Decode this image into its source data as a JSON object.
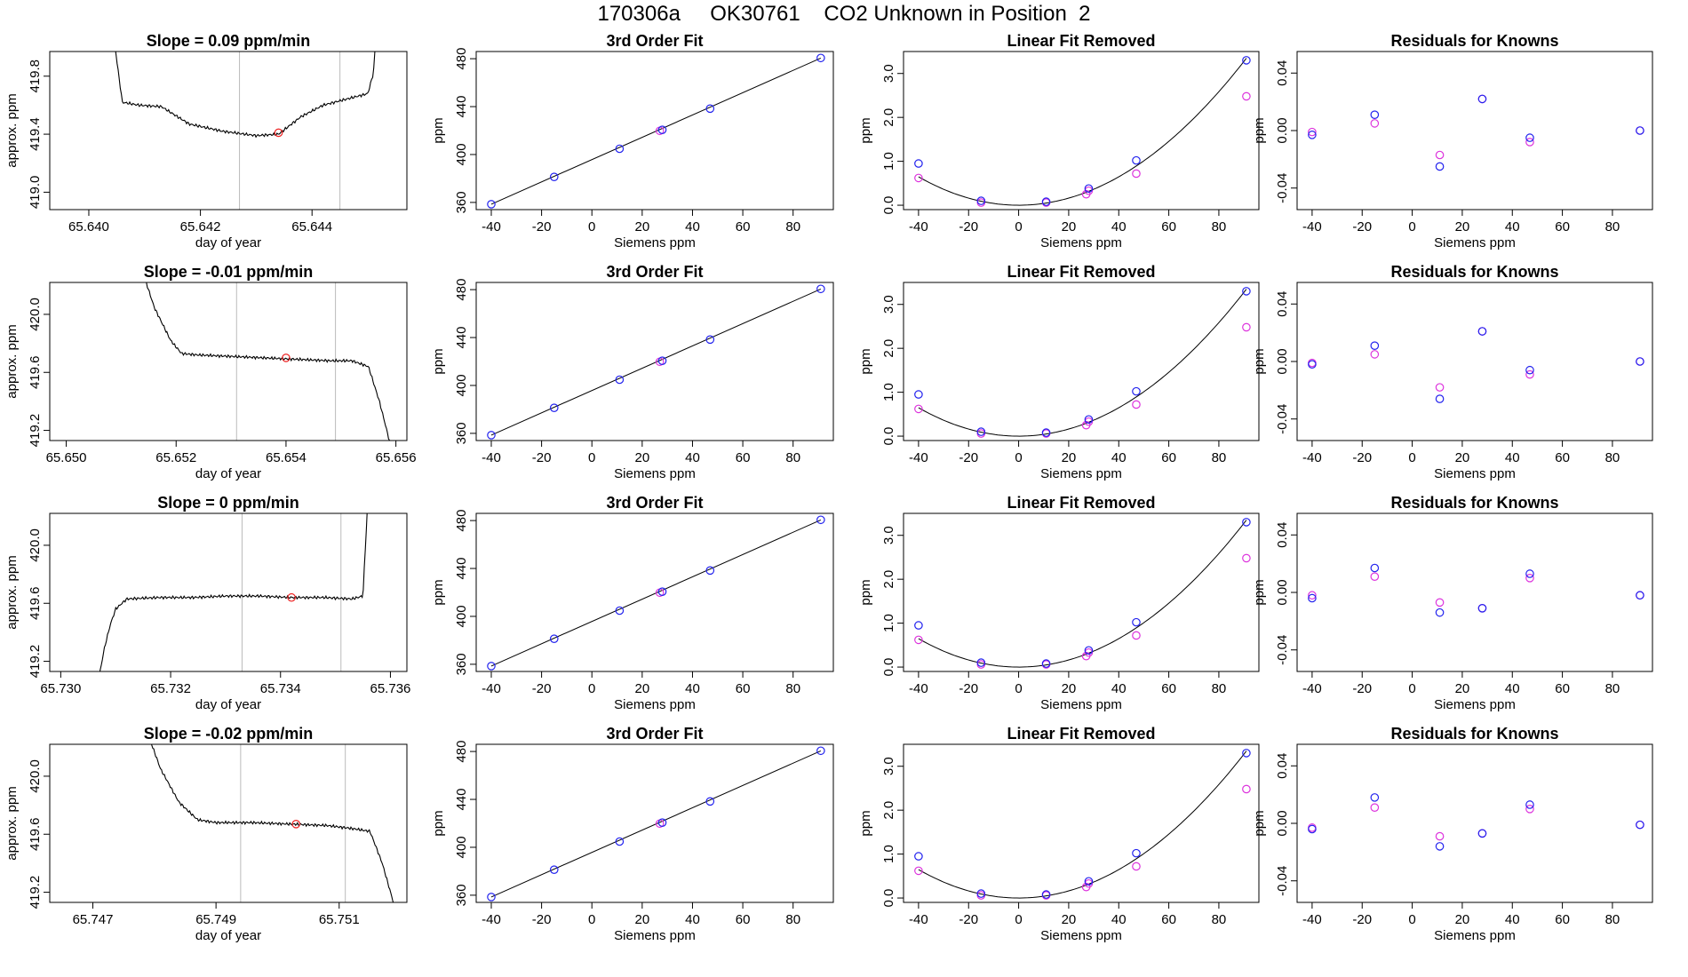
{
  "page_title": "170306a     OK30761    CO2 Unknown in Position  2",
  "colors": {
    "curve": "#000000",
    "blue": "#2222ee",
    "magenta": "#dd33dd",
    "red": "#ee2222",
    "vline": "#bbbbbb"
  },
  "chart_data": [
    {
      "type": "line",
      "panel": "time-series",
      "title": "Slope =  0.09  ppm/min",
      "xlabel": "day of year",
      "ylabel": "approx. ppm",
      "xlim": [
        65.6393,
        65.6457
      ],
      "ylim": [
        418.88,
        419.97
      ],
      "xticks": [
        65.64,
        65.642,
        65.644
      ],
      "xtick_labels": [
        "65.640",
        "65.642",
        "65.644"
      ],
      "yticks": [
        419.0,
        419.4,
        419.8
      ],
      "ytick_labels": [
        "419.0",
        "419.4",
        "419.8"
      ],
      "vlines": [
        65.6427,
        65.6445
      ],
      "marker": {
        "x": 65.6434,
        "y": 419.41
      },
      "x": [
        65.6403,
        65.6406,
        65.6409,
        65.6413,
        65.6418,
        65.6424,
        65.643,
        65.6434,
        65.6438,
        65.6442,
        65.6446,
        65.645,
        65.6451,
        65.6452
      ],
      "y": [
        420.5,
        419.62,
        419.6,
        419.59,
        419.47,
        419.42,
        419.39,
        419.4,
        419.52,
        419.6,
        419.64,
        419.68,
        419.82,
        420.4
      ]
    },
    {
      "type": "scatter",
      "panel": "fit",
      "title": "3rd Order Fit",
      "xlabel": "Siemens ppm",
      "ylabel": "ppm",
      "xlim": [
        -46,
        96
      ],
      "ylim": [
        354,
        486
      ],
      "xticks": [
        -40,
        -20,
        0,
        20,
        40,
        60,
        80
      ],
      "xtick_labels": [
        "-40",
        "-20",
        "0",
        "20",
        "40",
        "60",
        "80"
      ],
      "yticks": [
        360,
        400,
        440,
        480
      ],
      "ytick_labels": [
        "360",
        "400",
        "440",
        "480"
      ],
      "fit_line": {
        "x": [
          -40,
          91
        ],
        "y": [
          358.5,
          480.5
        ]
      },
      "blue_points": {
        "x": [
          -40,
          -15,
          11,
          28,
          47,
          91
        ],
        "y": [
          358.5,
          381.3,
          404.8,
          420.6,
          438.3,
          480.6
        ]
      },
      "magenta_points": {
        "x": [
          27
        ],
        "y": [
          419.8
        ]
      }
    },
    {
      "type": "scatter",
      "panel": "linear-removed",
      "title": "Linear Fit Removed",
      "xlabel": "Siemens ppm",
      "ylabel": "ppm",
      "xlim": [
        -46,
        96
      ],
      "ylim": [
        -0.1,
        3.5
      ],
      "xticks": [
        -40,
        -20,
        0,
        20,
        40,
        60,
        80
      ],
      "xtick_labels": [
        "-40",
        "-20",
        "0",
        "20",
        "40",
        "60",
        "80"
      ],
      "yticks": [
        0.0,
        1.0,
        2.0,
        3.0
      ],
      "ytick_labels": [
        "0.0",
        "1.0",
        "2.0",
        "3.0"
      ],
      "curve_coeff_a": 0.000404,
      "blue_points": {
        "x": [
          -40,
          -15,
          11,
          28,
          47,
          91
        ],
        "y": [
          0.95,
          0.1,
          0.08,
          0.38,
          1.02,
          3.3
        ]
      },
      "magenta_points": {
        "x": [
          -40,
          -15,
          11,
          27,
          28,
          47,
          91
        ],
        "y": [
          0.62,
          0.06,
          0.06,
          0.25,
          0.33,
          0.72,
          2.48
        ]
      }
    },
    {
      "type": "scatter",
      "panel": "residuals",
      "title": "Residuals for Knowns",
      "xlabel": "Siemens ppm",
      "ylabel": "ppm",
      "xlim": [
        -46,
        96
      ],
      "ylim": [
        -0.055,
        0.055
      ],
      "xticks": [
        -40,
        -20,
        0,
        20,
        40,
        60,
        80
      ],
      "xtick_labels": [
        "-40",
        "-20",
        "0",
        "20",
        "40",
        "60",
        "80"
      ],
      "yticks": [
        -0.04,
        0.0,
        0.04
      ],
      "ytick_labels": [
        "-0.04",
        "0.00",
        "0.04"
      ],
      "blue_points": {
        "x": [
          -40,
          -15,
          11,
          28,
          47,
          91
        ],
        "y": [
          -0.003,
          0.011,
          -0.025,
          0.022,
          -0.005,
          0.0
        ]
      },
      "magenta_points": {
        "x": [
          -40,
          -15,
          11,
          28,
          47,
          91
        ],
        "y": [
          -0.001,
          0.005,
          -0.017,
          0.022,
          -0.008,
          0.0
        ]
      }
    },
    {
      "type": "line",
      "panel": "time-series",
      "title": "Slope =  -0.01  ppm/min",
      "xlabel": "day of year",
      "ylabel": "approx. ppm",
      "xlim": [
        65.6497,
        65.6562
      ],
      "ylim": [
        419.13,
        420.22
      ],
      "xticks": [
        65.65,
        65.652,
        65.654,
        65.656
      ],
      "xtick_labels": [
        "65.650",
        "65.652",
        "65.654",
        "65.656"
      ],
      "yticks": [
        419.2,
        419.6,
        420.0
      ],
      "ytick_labels": [
        "419.2",
        "419.6",
        "420.0"
      ],
      "vlines": [
        65.6531,
        65.6549
      ],
      "marker": {
        "x": 65.654,
        "y": 419.7
      },
      "x": [
        65.6513,
        65.6516,
        65.6519,
        65.6521,
        65.6524,
        65.653,
        65.6536,
        65.6542,
        65.6548,
        65.6552,
        65.6555,
        65.6557,
        65.6559
      ],
      "y": [
        420.4,
        420.05,
        419.82,
        419.73,
        419.72,
        419.71,
        419.7,
        419.69,
        419.68,
        419.68,
        419.64,
        419.4,
        419.1
      ]
    },
    {
      "type": "scatter",
      "panel": "fit",
      "title": "3rd Order Fit",
      "xlabel": "Siemens ppm",
      "ylabel": "ppm",
      "xlim": [
        -46,
        96
      ],
      "ylim": [
        354,
        486
      ],
      "xticks": [
        -40,
        -20,
        0,
        20,
        40,
        60,
        80
      ],
      "xtick_labels": [
        "-40",
        "-20",
        "0",
        "20",
        "40",
        "60",
        "80"
      ],
      "yticks": [
        360,
        400,
        440,
        480
      ],
      "ytick_labels": [
        "360",
        "400",
        "440",
        "480"
      ],
      "fit_line": {
        "x": [
          -40,
          91
        ],
        "y": [
          358.5,
          480.5
        ]
      },
      "blue_points": {
        "x": [
          -40,
          -15,
          11,
          28,
          47,
          91
        ],
        "y": [
          358.5,
          381.3,
          404.8,
          420.6,
          438.3,
          480.6
        ]
      },
      "magenta_points": {
        "x": [
          27
        ],
        "y": [
          419.8
        ]
      }
    },
    {
      "type": "scatter",
      "panel": "linear-removed",
      "title": "Linear Fit Removed",
      "xlabel": "Siemens ppm",
      "ylabel": "ppm",
      "xlim": [
        -46,
        96
      ],
      "ylim": [
        -0.1,
        3.5
      ],
      "xticks": [
        -40,
        -20,
        0,
        20,
        40,
        60,
        80
      ],
      "xtick_labels": [
        "-40",
        "-20",
        "0",
        "20",
        "40",
        "60",
        "80"
      ],
      "yticks": [
        0.0,
        1.0,
        2.0,
        3.0
      ],
      "ytick_labels": [
        "0.0",
        "1.0",
        "2.0",
        "3.0"
      ],
      "curve_coeff_a": 0.000404,
      "blue_points": {
        "x": [
          -40,
          -15,
          11,
          28,
          47,
          91
        ],
        "y": [
          0.95,
          0.1,
          0.08,
          0.38,
          1.02,
          3.3
        ]
      },
      "magenta_points": {
        "x": [
          -40,
          -15,
          11,
          27,
          28,
          47,
          91
        ],
        "y": [
          0.62,
          0.06,
          0.06,
          0.25,
          0.33,
          0.72,
          2.48
        ]
      }
    },
    {
      "type": "scatter",
      "panel": "residuals",
      "title": "Residuals for Knowns",
      "xlabel": "Siemens ppm",
      "ylabel": "ppm",
      "xlim": [
        -46,
        96
      ],
      "ylim": [
        -0.055,
        0.055
      ],
      "xticks": [
        -40,
        -20,
        0,
        20,
        40,
        60,
        80
      ],
      "xtick_labels": [
        "-40",
        "-20",
        "0",
        "20",
        "40",
        "60",
        "80"
      ],
      "yticks": [
        -0.04,
        0.0,
        0.04
      ],
      "ytick_labels": [
        "-0.04",
        "0.00",
        "0.04"
      ],
      "blue_points": {
        "x": [
          -40,
          -15,
          11,
          28,
          47,
          91
        ],
        "y": [
          -0.002,
          0.011,
          -0.026,
          0.021,
          -0.006,
          0.0
        ]
      },
      "magenta_points": {
        "x": [
          -40,
          -15,
          11,
          28,
          47,
          91
        ],
        "y": [
          -0.001,
          0.005,
          -0.018,
          0.021,
          -0.009,
          0.0
        ]
      }
    },
    {
      "type": "line",
      "panel": "time-series",
      "title": "Slope =  0  ppm/min",
      "xlabel": "day of year",
      "ylabel": "approx. ppm",
      "xlim": [
        65.7298,
        65.7363
      ],
      "ylim": [
        419.13,
        420.22
      ],
      "xticks": [
        65.73,
        65.732,
        65.734,
        65.736
      ],
      "xtick_labels": [
        "65.730",
        "65.732",
        "65.734",
        "65.736"
      ],
      "yticks": [
        419.2,
        419.6,
        420.0
      ],
      "ytick_labels": [
        "419.2",
        "419.6",
        "420.0"
      ],
      "vlines": [
        65.7333,
        65.7351
      ],
      "marker": {
        "x": 65.7342,
        "y": 419.64
      },
      "x": [
        65.7307,
        65.7308,
        65.7309,
        65.731,
        65.7312,
        65.7318,
        65.7324,
        65.733,
        65.7336,
        65.7342,
        65.7348,
        65.7353,
        65.7355,
        65.7356
      ],
      "y": [
        419.1,
        419.3,
        419.45,
        419.56,
        419.63,
        419.64,
        419.64,
        419.65,
        419.65,
        419.64,
        419.64,
        419.63,
        419.65,
        420.4
      ]
    },
    {
      "type": "scatter",
      "panel": "fit",
      "title": "3rd Order Fit",
      "xlabel": "Siemens ppm",
      "ylabel": "ppm",
      "xlim": [
        -46,
        96
      ],
      "ylim": [
        354,
        486
      ],
      "xticks": [
        -40,
        -20,
        0,
        20,
        40,
        60,
        80
      ],
      "xtick_labels": [
        "-40",
        "-20",
        "0",
        "20",
        "40",
        "60",
        "80"
      ],
      "yticks": [
        360,
        400,
        440,
        480
      ],
      "ytick_labels": [
        "360",
        "400",
        "440",
        "480"
      ],
      "fit_line": {
        "x": [
          -40,
          91
        ],
        "y": [
          358.5,
          480.5
        ]
      },
      "blue_points": {
        "x": [
          -40,
          -15,
          11,
          28,
          47,
          91
        ],
        "y": [
          358.5,
          381.3,
          404.8,
          420.6,
          438.3,
          480.6
        ]
      },
      "magenta_points": {
        "x": [
          27
        ],
        "y": [
          419.8
        ]
      }
    },
    {
      "type": "scatter",
      "panel": "linear-removed",
      "title": "Linear Fit Removed",
      "xlabel": "Siemens ppm",
      "ylabel": "ppm",
      "xlim": [
        -46,
        96
      ],
      "ylim": [
        -0.1,
        3.5
      ],
      "xticks": [
        -40,
        -20,
        0,
        20,
        40,
        60,
        80
      ],
      "xtick_labels": [
        "-40",
        "-20",
        "0",
        "20",
        "40",
        "60",
        "80"
      ],
      "yticks": [
        0.0,
        1.0,
        2.0,
        3.0
      ],
      "ytick_labels": [
        "0.0",
        "1.0",
        "2.0",
        "3.0"
      ],
      "curve_coeff_a": 0.000404,
      "blue_points": {
        "x": [
          -40,
          -15,
          11,
          28,
          47,
          91
        ],
        "y": [
          0.95,
          0.1,
          0.08,
          0.38,
          1.02,
          3.3
        ]
      },
      "magenta_points": {
        "x": [
          -40,
          -15,
          11,
          27,
          28,
          47,
          91
        ],
        "y": [
          0.62,
          0.06,
          0.06,
          0.25,
          0.33,
          0.72,
          2.48
        ]
      }
    },
    {
      "type": "scatter",
      "panel": "residuals",
      "title": "Residuals for Knowns",
      "xlabel": "Siemens ppm",
      "ylabel": "ppm",
      "xlim": [
        -46,
        96
      ],
      "ylim": [
        -0.055,
        0.055
      ],
      "xticks": [
        -40,
        -20,
        0,
        20,
        40,
        60,
        80
      ],
      "xtick_labels": [
        "-40",
        "-20",
        "0",
        "20",
        "40",
        "60",
        "80"
      ],
      "yticks": [
        -0.04,
        0.0,
        0.04
      ],
      "ytick_labels": [
        "-0.04",
        "0.00",
        "0.04"
      ],
      "blue_points": {
        "x": [
          -40,
          -15,
          11,
          28,
          47,
          91
        ],
        "y": [
          -0.004,
          0.017,
          -0.014,
          -0.011,
          0.013,
          -0.002
        ]
      },
      "magenta_points": {
        "x": [
          -40,
          -15,
          11,
          28,
          47,
          91
        ],
        "y": [
          -0.002,
          0.011,
          -0.007,
          -0.011,
          0.01,
          -0.002
        ]
      }
    },
    {
      "type": "line",
      "panel": "time-series",
      "title": "Slope =  -0.02  ppm/min",
      "xlabel": "day of year",
      "ylabel": "approx. ppm",
      "xlim": [
        65.7463,
        65.7521
      ],
      "ylim": [
        419.13,
        420.22
      ],
      "xticks": [
        65.747,
        65.749,
        65.751
      ],
      "xtick_labels": [
        "65.747",
        "65.749",
        "65.751"
      ],
      "yticks": [
        419.2,
        419.6,
        420.0
      ],
      "ytick_labels": [
        "419.2",
        "419.6",
        "420.0"
      ],
      "vlines": [
        65.7494,
        65.7511
      ],
      "marker": {
        "x": 65.7503,
        "y": 419.67
      },
      "x": [
        65.7478,
        65.7481,
        65.7484,
        65.7487,
        65.749,
        65.7496,
        65.7502,
        65.7508,
        65.7512,
        65.7515,
        65.7517,
        65.7519
      ],
      "y": [
        420.4,
        420.05,
        419.82,
        419.7,
        419.68,
        419.68,
        419.67,
        419.66,
        419.64,
        419.62,
        419.4,
        419.1
      ]
    },
    {
      "type": "scatter",
      "panel": "fit",
      "title": "3rd Order Fit",
      "xlabel": "Siemens ppm",
      "ylabel": "ppm",
      "xlim": [
        -46,
        96
      ],
      "ylim": [
        354,
        486
      ],
      "xticks": [
        -40,
        -20,
        0,
        20,
        40,
        60,
        80
      ],
      "xtick_labels": [
        "-40",
        "-20",
        "0",
        "20",
        "40",
        "60",
        "80"
      ],
      "yticks": [
        360,
        400,
        440,
        480
      ],
      "ytick_labels": [
        "360",
        "400",
        "440",
        "480"
      ],
      "fit_line": {
        "x": [
          -40,
          91
        ],
        "y": [
          358.5,
          480.5
        ]
      },
      "blue_points": {
        "x": [
          -40,
          -15,
          11,
          28,
          47,
          91
        ],
        "y": [
          358.5,
          381.3,
          404.8,
          420.6,
          438.3,
          480.6
        ]
      },
      "magenta_points": {
        "x": [
          27
        ],
        "y": [
          419.8
        ]
      }
    },
    {
      "type": "scatter",
      "panel": "linear-removed",
      "title": "Linear Fit Removed",
      "xlabel": "Siemens ppm",
      "ylabel": "ppm",
      "xlim": [
        -46,
        96
      ],
      "ylim": [
        -0.1,
        3.5
      ],
      "xticks": [
        -40,
        -20,
        0,
        20,
        40,
        60,
        80
      ],
      "xtick_labels": [
        "-40",
        "-20",
        "0",
        "20",
        "40",
        "60",
        "80"
      ],
      "yticks": [
        0.0,
        1.0,
        2.0,
        3.0
      ],
      "ytick_labels": [
        "0.0",
        "1.0",
        "2.0",
        "3.0"
      ],
      "curve_coeff_a": 0.000404,
      "blue_points": {
        "x": [
          -40,
          -15,
          11,
          28,
          47,
          91
        ],
        "y": [
          0.95,
          0.1,
          0.08,
          0.38,
          1.02,
          3.3
        ]
      },
      "magenta_points": {
        "x": [
          -40,
          -15,
          11,
          27,
          28,
          47,
          91
        ],
        "y": [
          0.62,
          0.06,
          0.06,
          0.25,
          0.33,
          0.72,
          2.48
        ]
      }
    },
    {
      "type": "scatter",
      "panel": "residuals",
      "title": "Residuals for Knowns",
      "xlabel": "Siemens ppm",
      "ylabel": "ppm",
      "xlim": [
        -46,
        96
      ],
      "ylim": [
        -0.055,
        0.055
      ],
      "xticks": [
        -40,
        -20,
        0,
        20,
        40,
        60,
        80
      ],
      "xtick_labels": [
        "-40",
        "-20",
        "0",
        "20",
        "40",
        "60",
        "80"
      ],
      "yticks": [
        -0.04,
        0.0,
        0.04
      ],
      "ytick_labels": [
        "-0.04",
        "0.00",
        "0.04"
      ],
      "blue_points": {
        "x": [
          -40,
          -15,
          11,
          28,
          47,
          91
        ],
        "y": [
          -0.004,
          0.018,
          -0.016,
          -0.007,
          0.013,
          -0.001
        ]
      },
      "magenta_points": {
        "x": [
          -40,
          -15,
          11,
          28,
          47,
          91
        ],
        "y": [
          -0.003,
          0.011,
          -0.009,
          -0.007,
          0.01,
          -0.001
        ]
      }
    }
  ]
}
